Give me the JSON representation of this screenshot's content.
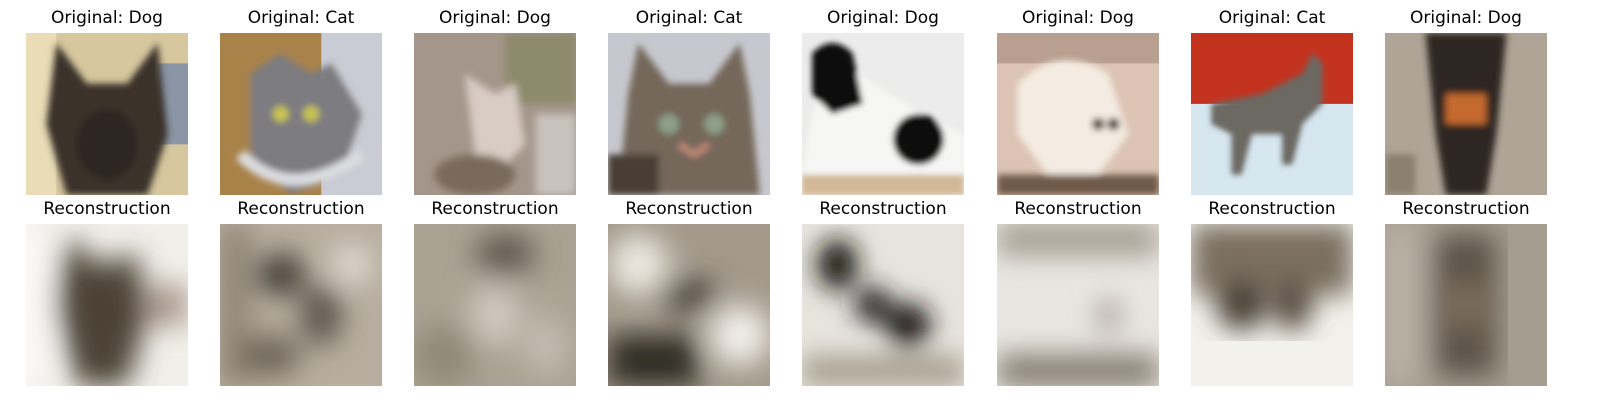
{
  "reconstruction_label": "Reconstruction",
  "panels": [
    {
      "original_title": "Original: Dog",
      "subject": "dog",
      "bg": "#d9c9a0"
    },
    {
      "original_title": "Original: Cat",
      "subject": "cat",
      "bg": "#b08848"
    },
    {
      "original_title": "Original: Dog",
      "subject": "dog",
      "bg": "#a8988a"
    },
    {
      "original_title": "Original: Cat",
      "subject": "cat",
      "bg": "#c8c8d0"
    },
    {
      "original_title": "Original: Dog",
      "subject": "dog",
      "bg": "#efefef"
    },
    {
      "original_title": "Original: Dog",
      "subject": "dog",
      "bg": "#e8cfc0"
    },
    {
      "original_title": "Original: Cat",
      "subject": "cat",
      "bg": "#d8e8f0"
    },
    {
      "original_title": "Original: Dog",
      "subject": "dog",
      "bg": "#b0a898"
    }
  ]
}
